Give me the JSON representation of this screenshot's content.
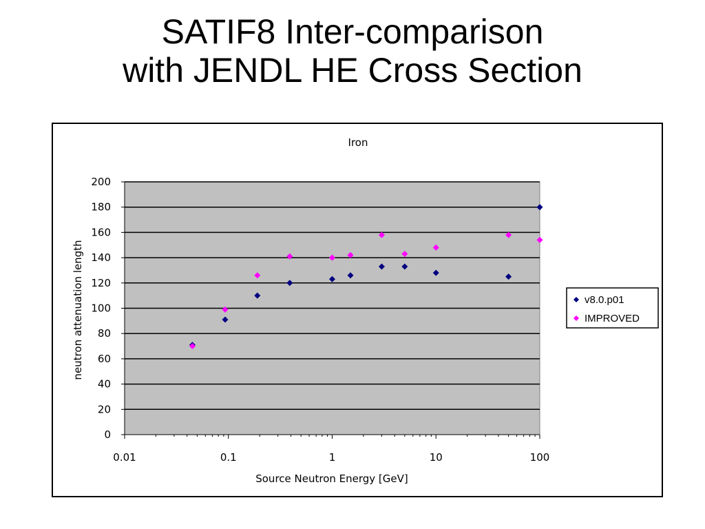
{
  "slide": {
    "title_line1": "SATIF8 Inter-comparison",
    "title_line2": "with JENDL HE Cross Section"
  },
  "chart_data": {
    "type": "scatter",
    "title": "Iron",
    "xlabel": "Source Neutron Energy [GeV]",
    "ylabel": "neutron attenuation length",
    "xscale": "log",
    "xlim": [
      0.01,
      100
    ],
    "ylim": [
      0,
      200
    ],
    "xticks": [
      "0.01",
      "0.1",
      "1",
      "10",
      "100"
    ],
    "yticks": [
      "0",
      "20",
      "40",
      "60",
      "80",
      "100",
      "120",
      "140",
      "160",
      "180",
      "200"
    ],
    "grid": "horizontal",
    "plot_background": "#c0c0c0",
    "legend_position": "right",
    "series": [
      {
        "name": "v8.0.p01",
        "color": "#000080",
        "marker": "diamond",
        "points": [
          {
            "x": 0.045,
            "y": 71
          },
          {
            "x": 0.093,
            "y": 91
          },
          {
            "x": 0.19,
            "y": 110
          },
          {
            "x": 0.39,
            "y": 120
          },
          {
            "x": 1.0,
            "y": 123
          },
          {
            "x": 1.5,
            "y": 126
          },
          {
            "x": 3.0,
            "y": 133
          },
          {
            "x": 5.0,
            "y": 133
          },
          {
            "x": 10,
            "y": 128
          },
          {
            "x": 50,
            "y": 125
          },
          {
            "x": 100,
            "y": 180
          }
        ]
      },
      {
        "name": "IMPROVED",
        "color": "#ff00ff",
        "marker": "diamond",
        "points": [
          {
            "x": 0.045,
            "y": 70
          },
          {
            "x": 0.093,
            "y": 99
          },
          {
            "x": 0.19,
            "y": 126
          },
          {
            "x": 0.39,
            "y": 141
          },
          {
            "x": 1.0,
            "y": 140
          },
          {
            "x": 1.5,
            "y": 142
          },
          {
            "x": 3.0,
            "y": 158
          },
          {
            "x": 5.0,
            "y": 143
          },
          {
            "x": 10,
            "y": 148
          },
          {
            "x": 50,
            "y": 158
          },
          {
            "x": 100,
            "y": 154
          }
        ]
      }
    ]
  }
}
